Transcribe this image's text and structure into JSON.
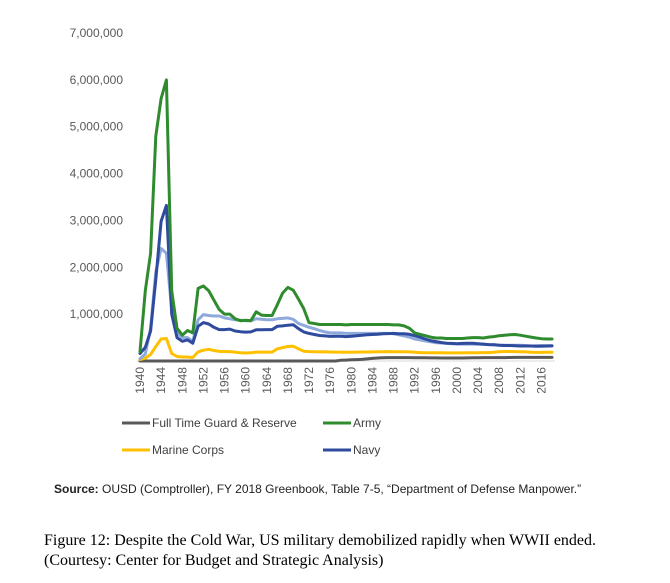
{
  "chart_data": {
    "type": "line",
    "x": [
      1940,
      1941,
      1942,
      1943,
      1944,
      1945,
      1946,
      1947,
      1948,
      1949,
      1950,
      1951,
      1952,
      1953,
      1954,
      1955,
      1956,
      1957,
      1958,
      1959,
      1960,
      1961,
      1962,
      1963,
      1964,
      1965,
      1966,
      1967,
      1968,
      1969,
      1970,
      1971,
      1972,
      1973,
      1974,
      1975,
      1976,
      1977,
      1978,
      1979,
      1980,
      1981,
      1982,
      1983,
      1984,
      1985,
      1986,
      1987,
      1988,
      1989,
      1990,
      1991,
      1992,
      1993,
      1994,
      1995,
      1996,
      1997,
      1998,
      1999,
      2000,
      2001,
      2002,
      2003,
      2004,
      2005,
      2006,
      2007,
      2008,
      2009,
      2010,
      2011,
      2012,
      2013,
      2014,
      2015,
      2016,
      2017,
      2018
    ],
    "x_ticks": [
      "1940",
      "1944",
      "1948",
      "1952",
      "1956",
      "1960",
      "1964",
      "1968",
      "1972",
      "1976",
      "1980",
      "1984",
      "1988",
      "1992",
      "1996",
      "2000",
      "2004",
      "2008",
      "2012",
      "2016"
    ],
    "y_ticks": [
      "7,000,000",
      "6,000,000",
      "5,000,000",
      "4,000,000",
      "3,000,000",
      "2,000,000",
      "1,000,000"
    ],
    "ylim": [
      0,
      7000000
    ],
    "grid": false,
    "legend": "bottom",
    "series": [
      {
        "name": "Full Time Guard & Reserve",
        "color": "#595959",
        "values": [
          0,
          0,
          0,
          0,
          0,
          0,
          0,
          0,
          0,
          0,
          0,
          0,
          0,
          0,
          0,
          0,
          0,
          0,
          0,
          0,
          0,
          0,
          0,
          0,
          0,
          0,
          0,
          0,
          0,
          0,
          0,
          0,
          0,
          0,
          0,
          0,
          0,
          0,
          15000,
          20000,
          25000,
          30000,
          35000,
          45000,
          55000,
          65000,
          70000,
          72000,
          72000,
          72000,
          72000,
          72000,
          70000,
          70000,
          68000,
          67000,
          66000,
          65000,
          65000,
          65000,
          65000,
          65000,
          66000,
          68000,
          70000,
          72000,
          72000,
          72000,
          72000,
          72000,
          75000,
          76000,
          76000,
          76000,
          76000,
          76000,
          76000,
          76000,
          76000
        ]
      },
      {
        "name": "Army",
        "color": "#2e8b2e",
        "values": [
          200000,
          1500000,
          2300000,
          4800000,
          5600000,
          6000000,
          1500000,
          700000,
          550000,
          650000,
          600000,
          1550000,
          1600000,
          1500000,
          1300000,
          1100000,
          1000000,
          1000000,
          900000,
          860000,
          870000,
          860000,
          1050000,
          980000,
          970000,
          970000,
          1200000,
          1450000,
          1570000,
          1510000,
          1320000,
          1120000,
          820000,
          800000,
          780000,
          780000,
          780000,
          780000,
          780000,
          770000,
          780000,
          780000,
          780000,
          780000,
          780000,
          780000,
          780000,
          780000,
          770000,
          770000,
          750000,
          700000,
          600000,
          570000,
          540000,
          510000,
          490000,
          490000,
          480000,
          480000,
          480000,
          480000,
          490000,
          500000,
          500000,
          490000,
          510000,
          520000,
          540000,
          550000,
          560000,
          565000,
          550000,
          530000,
          510000,
          490000,
          475000,
          470000,
          470000
        ]
      },
      {
        "name": "Marine Corps",
        "color": "#ffc000",
        "values": [
          30000,
          60000,
          140000,
          310000,
          470000,
          480000,
          160000,
          95000,
          85000,
          85000,
          75000,
          195000,
          230000,
          250000,
          225000,
          205000,
          200000,
          200000,
          190000,
          175000,
          170000,
          176000,
          190000,
          190000,
          190000,
          190000,
          260000,
          285000,
          310000,
          315000,
          260000,
          210000,
          200000,
          196000,
          195000,
          196000,
          192000,
          191000,
          190000,
          185000,
          188000,
          190000,
          192000,
          193000,
          195000,
          198000,
          198000,
          200000,
          197000,
          197000,
          197000,
          195000,
          185000,
          180000,
          175000,
          174000,
          174000,
          174000,
          173000,
          172000,
          172000,
          172000,
          174000,
          176000,
          177000,
          180000,
          180000,
          186000,
          198000,
          202000,
          202000,
          201000,
          197000,
          195000,
          188000,
          184000,
          184000,
          186000,
          186000
        ]
      },
      {
        "name": "Navy",
        "color": "#2f4b9e",
        "values": [
          160000,
          290000,
          640000,
          1740000,
          2980000,
          3320000,
          1000000,
          500000,
          420000,
          450000,
          380000,
          740000,
          820000,
          790000,
          720000,
          670000,
          670000,
          680000,
          640000,
          625000,
          617000,
          620000,
          665000,
          665000,
          670000,
          670000,
          740000,
          750000,
          765000,
          775000,
          690000,
          620000,
          590000,
          565000,
          545000,
          535000,
          525000,
          530000,
          530000,
          520000,
          530000,
          540000,
          550000,
          560000,
          565000,
          570000,
          580000,
          585000,
          590000,
          580000,
          580000,
          570000,
          540000,
          510000,
          470000,
          435000,
          415000,
          395000,
          380000,
          375000,
          370000,
          375000,
          380000,
          380000,
          370000,
          360000,
          350000,
          345000,
          335000,
          330000,
          330000,
          325000,
          320000,
          320000,
          320000,
          320000,
          322000,
          323000,
          325000
        ]
      },
      {
        "color": "#8ea9db",
        "values": [
          50000,
          150000,
          700000,
          1900000,
          2400000,
          2300000,
          1100000,
          600000,
          500000,
          500000,
          420000,
          880000,
          990000,
          970000,
          960000,
          960000,
          920000,
          900000,
          880000,
          870000,
          860000,
          860000,
          900000,
          890000,
          880000,
          880000,
          900000,
          910000,
          920000,
          890000,
          800000,
          760000,
          720000,
          690000,
          650000,
          620000,
          600000,
          600000,
          600000,
          590000,
          590000,
          590000,
          590000,
          590000,
          590000,
          590000,
          590000,
          590000,
          580000,
          560000,
          535000,
          510000,
          470000,
          450000,
          430000,
          410000,
          390000,
          385000,
          375000,
          370000,
          365000,
          360000,
          360000,
          360000,
          360000,
          355000,
          350000,
          345000,
          340000,
          335000,
          335000,
          335000,
          335000,
          330000,
          320000,
          310000,
          310000,
          315000,
          320000
        ]
      }
    ]
  },
  "source": {
    "label": "Source:",
    "text": " OUSD (Comptroller), FY 2018 Greenbook, Table 7-5, “Department of Defense Manpower.”"
  },
  "caption": "Figure 12: Despite the Cold War, US military demobilized rapidly when WWII ended. (Courtesy: Center for Budget and Strategic Analysis)"
}
